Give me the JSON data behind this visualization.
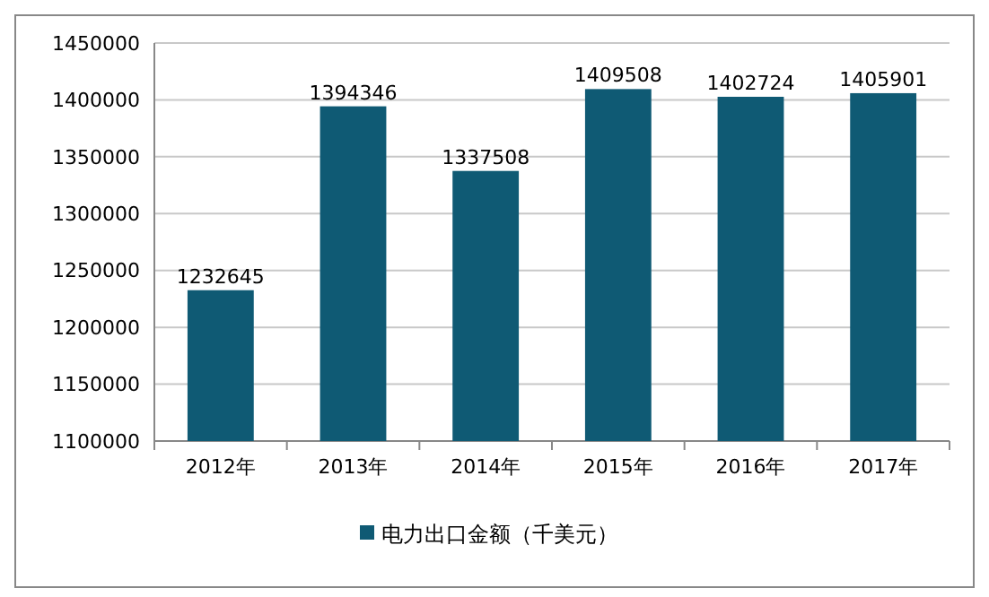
{
  "chart_data": {
    "type": "bar",
    "categories": [
      "2012年",
      "2013年",
      "2014年",
      "2015年",
      "2016年",
      "2017年"
    ],
    "series": [
      {
        "name": "电力出口金额（千美元）",
        "color": "#0f5a74",
        "values": [
          1232645,
          1394346,
          1337508,
          1409508,
          1402724,
          1405901
        ]
      }
    ],
    "ylim": [
      1100000,
      1450000
    ],
    "yticks": [
      1100000,
      1150000,
      1200000,
      1250000,
      1300000,
      1350000,
      1400000,
      1450000
    ],
    "grid": "y",
    "data_labels": true,
    "legend": "bottom"
  }
}
